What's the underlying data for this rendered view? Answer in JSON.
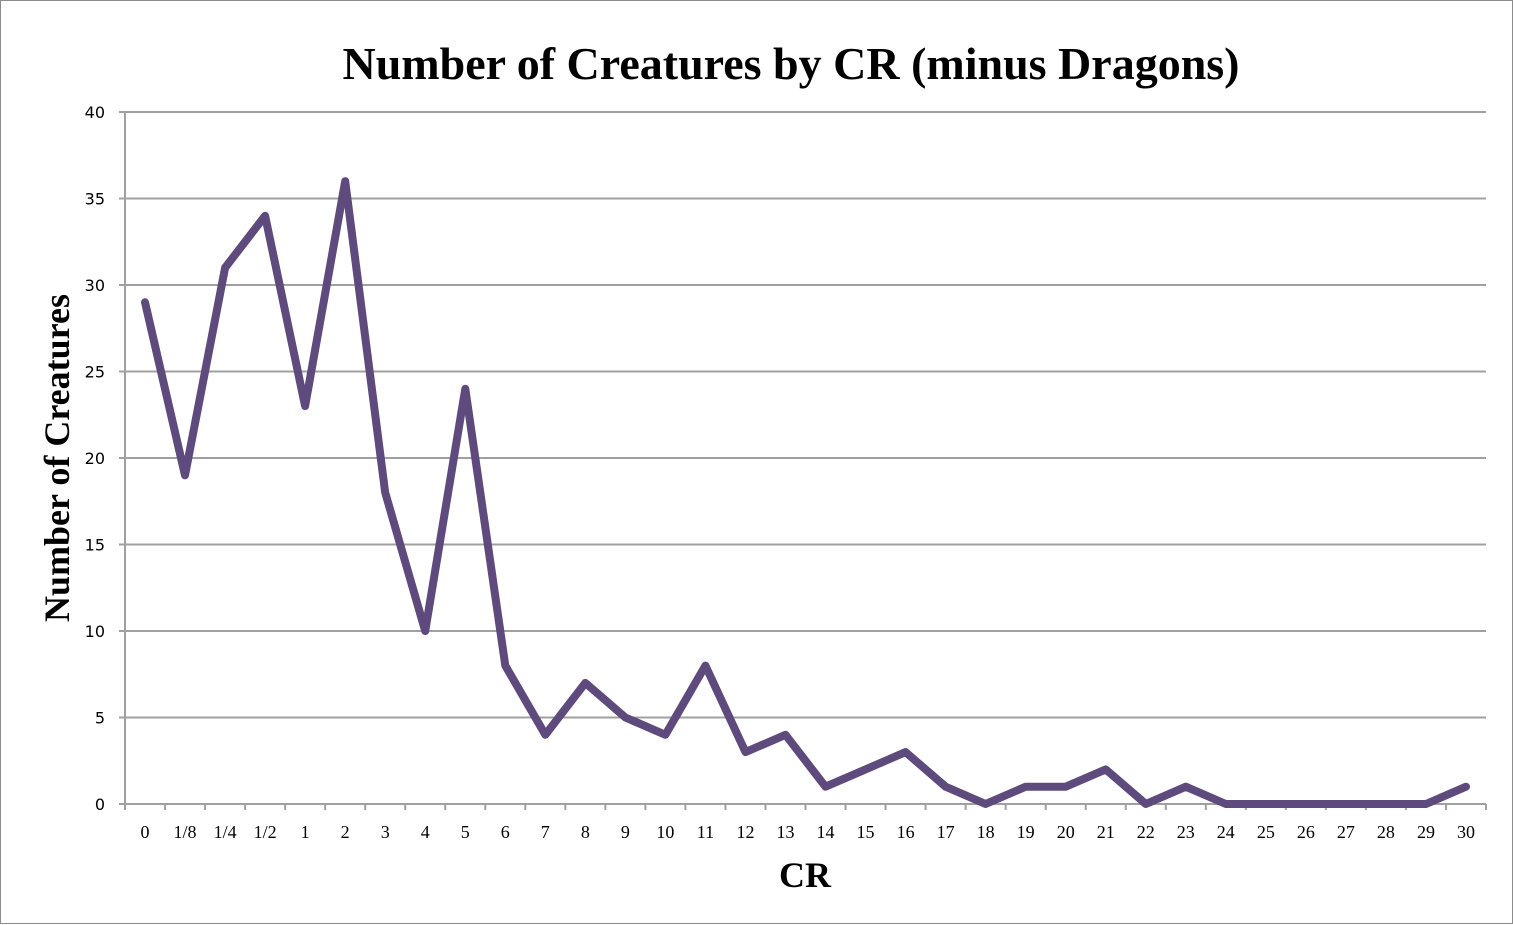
{
  "chart_data": {
    "type": "line",
    "title": "Number of Creatures by CR (minus Dragons)",
    "xlabel": "CR",
    "ylabel": "Number of Creatures",
    "categories": [
      "0",
      "1/8",
      "1/4",
      "1/2",
      "1",
      "2",
      "3",
      "4",
      "5",
      "6",
      "7",
      "8",
      "9",
      "10",
      "11",
      "12",
      "13",
      "14",
      "15",
      "16",
      "17",
      "18",
      "19",
      "20",
      "21",
      "22",
      "23",
      "24",
      "25",
      "26",
      "27",
      "28",
      "29",
      "30"
    ],
    "series": [
      {
        "name": "Number of Creatures",
        "color": "#5e4a7d",
        "values": [
          29,
          19,
          31,
          34,
          23,
          36,
          18,
          10,
          24,
          8,
          4,
          7,
          5,
          4,
          8,
          3,
          4,
          1,
          2,
          3,
          1,
          0,
          1,
          1,
          2,
          0,
          1,
          0,
          0,
          0,
          0,
          0,
          0,
          1
        ]
      }
    ],
    "ylim": [
      0,
      40
    ],
    "yticks": [
      0,
      5,
      10,
      15,
      20,
      25,
      30,
      35,
      40
    ],
    "grid": true,
    "legend": "none"
  }
}
